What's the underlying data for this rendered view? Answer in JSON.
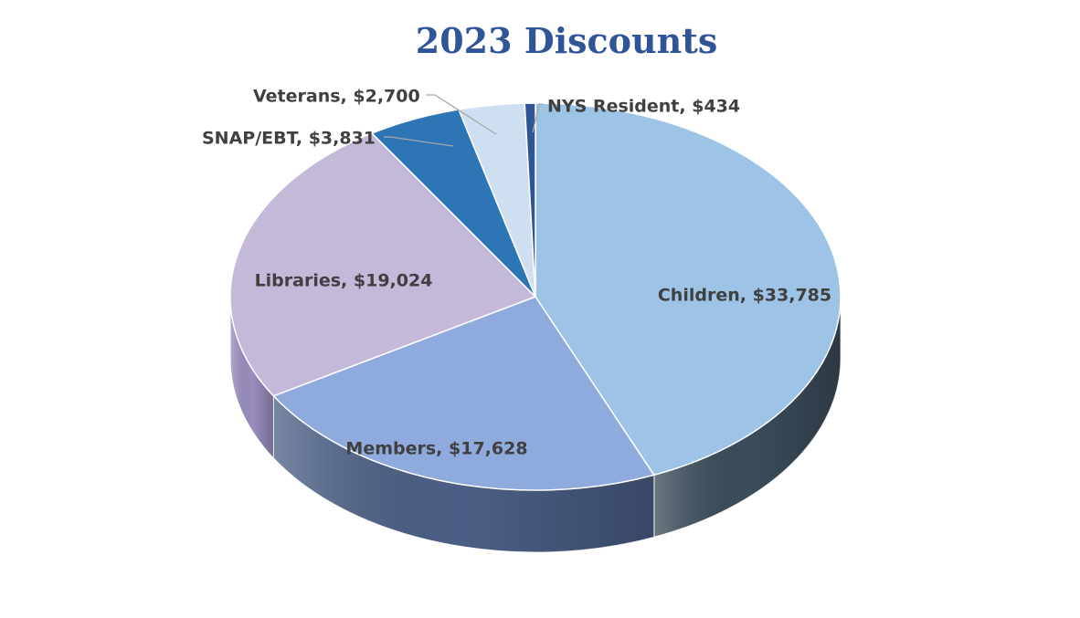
{
  "chart_data": {
    "type": "pie",
    "title": "2023 Discounts",
    "slices": [
      {
        "category": "Children",
        "value": 33785,
        "label": "Children, $33,785",
        "color": "#9dc3e6",
        "side_color": "#3b4d5c"
      },
      {
        "category": "Members",
        "value": 17628,
        "label": "Members, $17,628",
        "color": "#8faadc",
        "side_color": "#4b5f86"
      },
      {
        "category": "Libraries",
        "value": 19024,
        "label": "Libraries, $19,024",
        "color": "#c5b9da",
        "side_color": "#9a8fc0"
      },
      {
        "category": "SNAP/EBT",
        "value": 3831,
        "label": "SNAP/EBT, $3,831",
        "color": "#2e75b6",
        "side_color": "#1f4e79"
      },
      {
        "category": "Veterans",
        "value": 2700,
        "label": "Veterans, $2,700",
        "color": "#cfdff2",
        "side_color": "#8ea9c8"
      },
      {
        "category": "NYS Resident",
        "value": 434,
        "label": "NYS Resident, $434",
        "color": "#2f5597",
        "side_color": "#1f3864"
      }
    ],
    "start_angle_deg": -90,
    "direction": "clockwise",
    "style": "3d",
    "legend": "none"
  }
}
